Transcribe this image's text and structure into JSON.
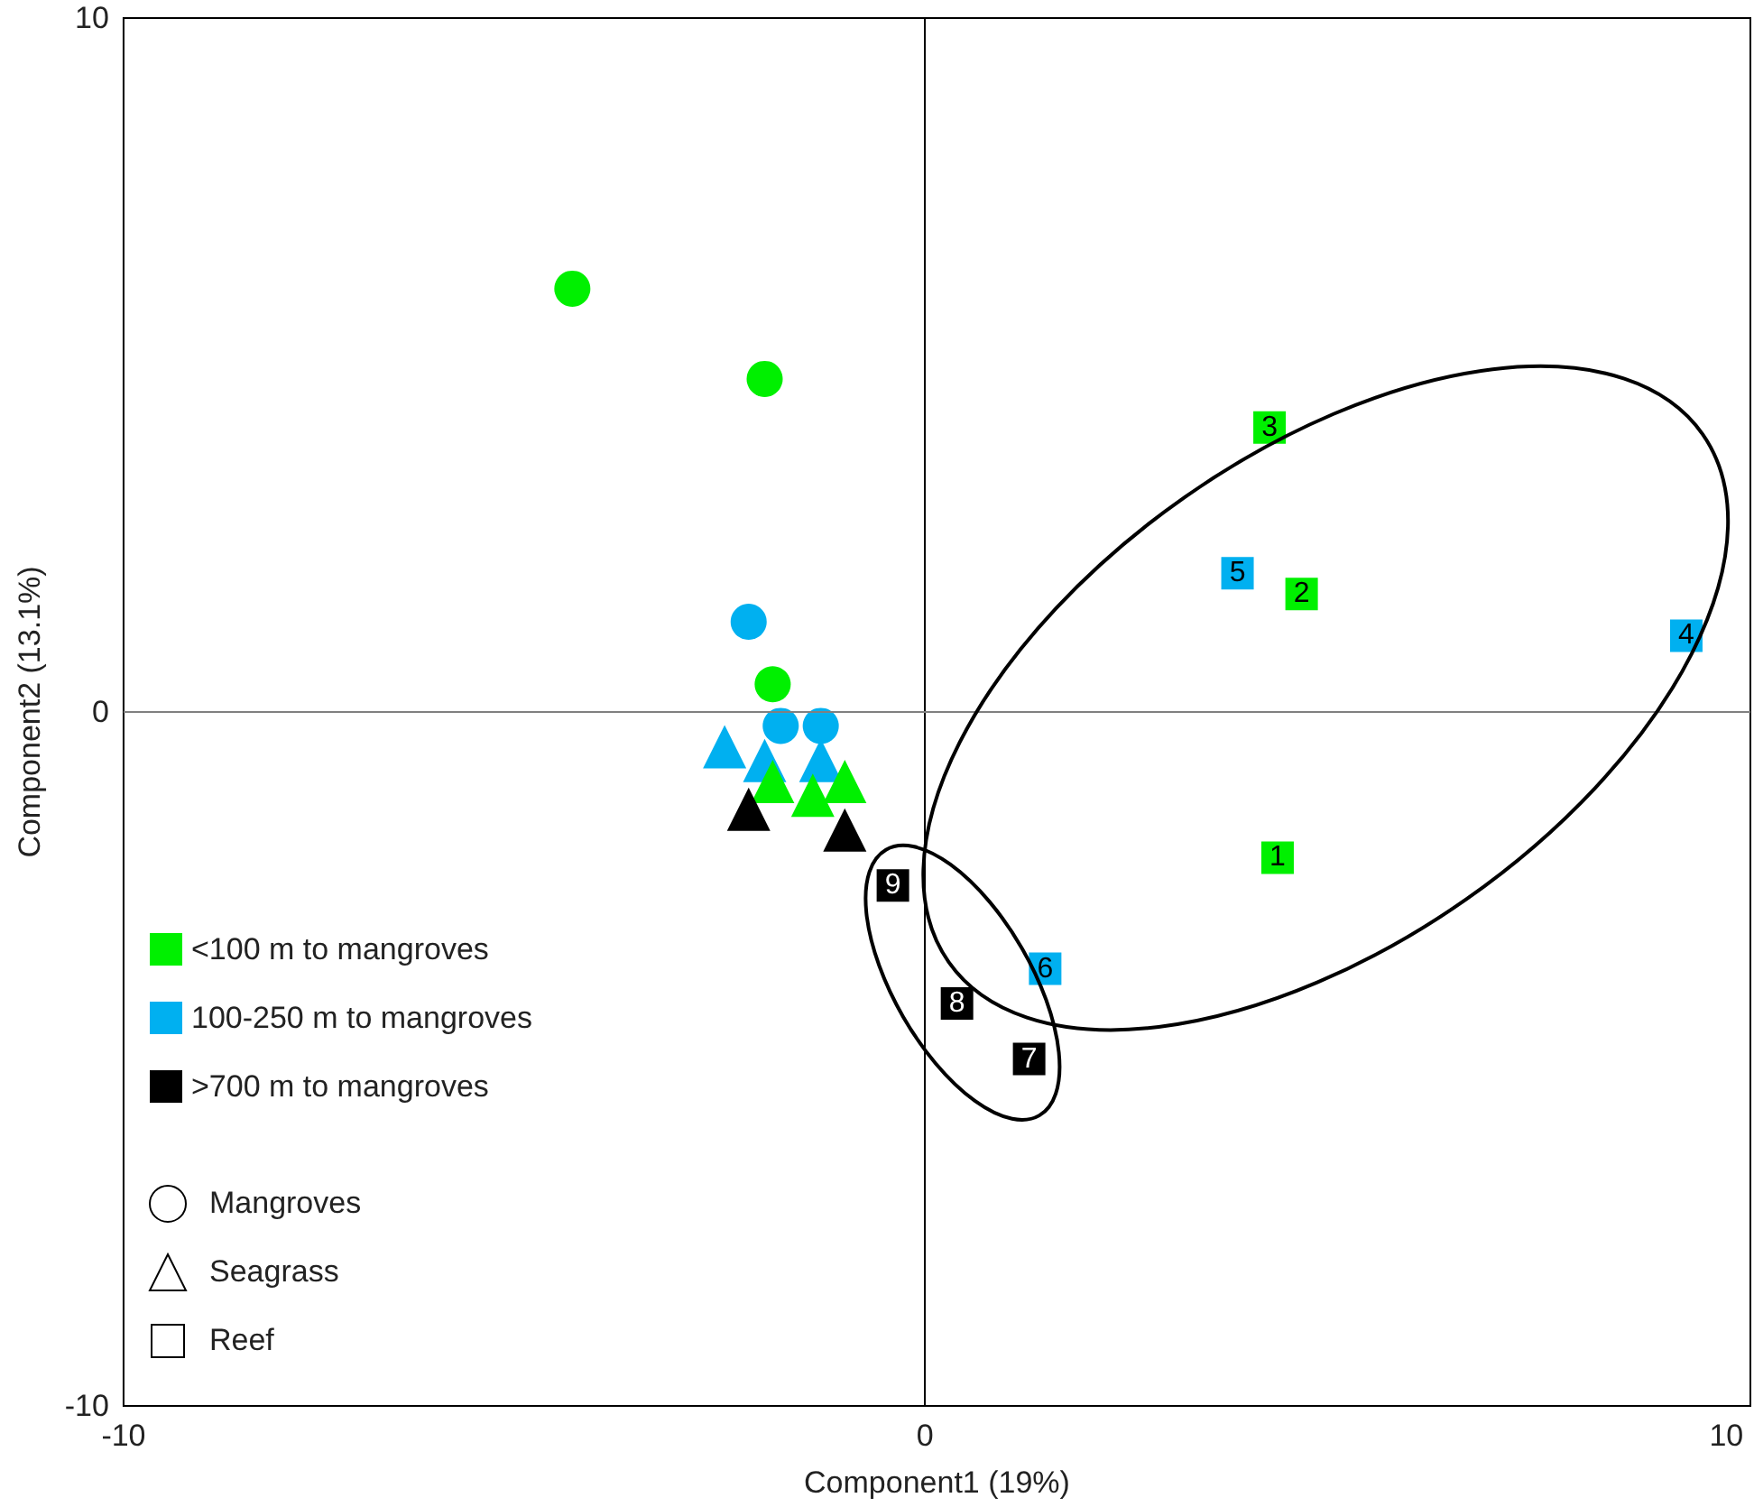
{
  "chart_data": {
    "type": "scatter",
    "xlabel": "Component1 (19%)",
    "ylabel": "Component2 (13.1%)",
    "xlim": [
      -10,
      10.3
    ],
    "ylim": [
      -10,
      10
    ],
    "xticks": [
      -10,
      0,
      10
    ],
    "yticks": [
      -10,
      0,
      10
    ],
    "grid": false,
    "legend": "bottom left",
    "ref_lines": [
      {
        "axis": "x",
        "value": 0,
        "color": "#000000"
      },
      {
        "axis": "y",
        "value": 0,
        "color": "#808080"
      }
    ],
    "annotations": [
      "Mangroves",
      "Seagrass",
      "Reef",
      {
        "text": "3",
        "x": 4.3,
        "y": 4.1
      },
      {
        "text": "2",
        "x": 4.7,
        "y": 1.7
      },
      {
        "text": "1",
        "x": 4.4,
        "y": -2.1
      },
      {
        "text": "5",
        "x": 3.9,
        "y": 2.0
      },
      {
        "text": "4",
        "x": 9.5,
        "y": 1.1
      },
      {
        "text": "6",
        "x": 1.5,
        "y": -3.7
      },
      {
        "text": "9",
        "x": -0.4,
        "y": -2.5
      },
      {
        "text": "8",
        "x": 0.4,
        "y": -4.2
      },
      {
        "text": "7",
        "x": 1.3,
        "y": -5.0
      }
    ],
    "series": [
      {
        "color": "#00f000",
        "marker": "circle",
        "x": [
          -4.4,
          -2.0,
          -1.9
        ],
        "values": [
          6.1,
          4.8,
          0.4
        ]
      },
      {
        "color": "#00b0f0",
        "marker": "circle",
        "x": [
          -2.2,
          -1.8,
          -1.3
        ],
        "values": [
          1.3,
          -0.2,
          -0.2
        ]
      },
      {
        "color": "#00b0f0",
        "marker": "triangle",
        "x": [
          -2.5,
          -2.0,
          -1.3
        ],
        "values": [
          -0.5,
          -0.7,
          -0.7
        ]
      },
      {
        "color": "#00f000",
        "marker": "triangle",
        "x": [
          -1.9,
          -1.4,
          -1.0
        ],
        "values": [
          -1.0,
          -1.2,
          -1.0
        ]
      },
      {
        "color": "#000000",
        "marker": "triangle",
        "x": [
          -2.2,
          -1.0
        ],
        "values": [
          -1.4,
          -1.7
        ]
      },
      {
        "name": "<100 m to mangroves",
        "color": "#00f000",
        "marker": "square",
        "x": [
          4.3,
          4.7,
          4.4
        ],
        "values": [
          4.1,
          1.7,
          -2.1
        ]
      },
      {
        "name": "100-250 m to mangroves",
        "color": "#00b0f0",
        "marker": "square",
        "x": [
          3.9,
          9.5,
          1.5
        ],
        "values": [
          2.0,
          1.1,
          -3.7
        ]
      },
      {
        "name": ">700 m to mangroves",
        "color": "#000000",
        "marker": "square",
        "x": [
          -0.4,
          0.4,
          1.3
        ],
        "values": [
          -2.5,
          -4.2,
          -5.0
        ]
      }
    ]
  }
}
